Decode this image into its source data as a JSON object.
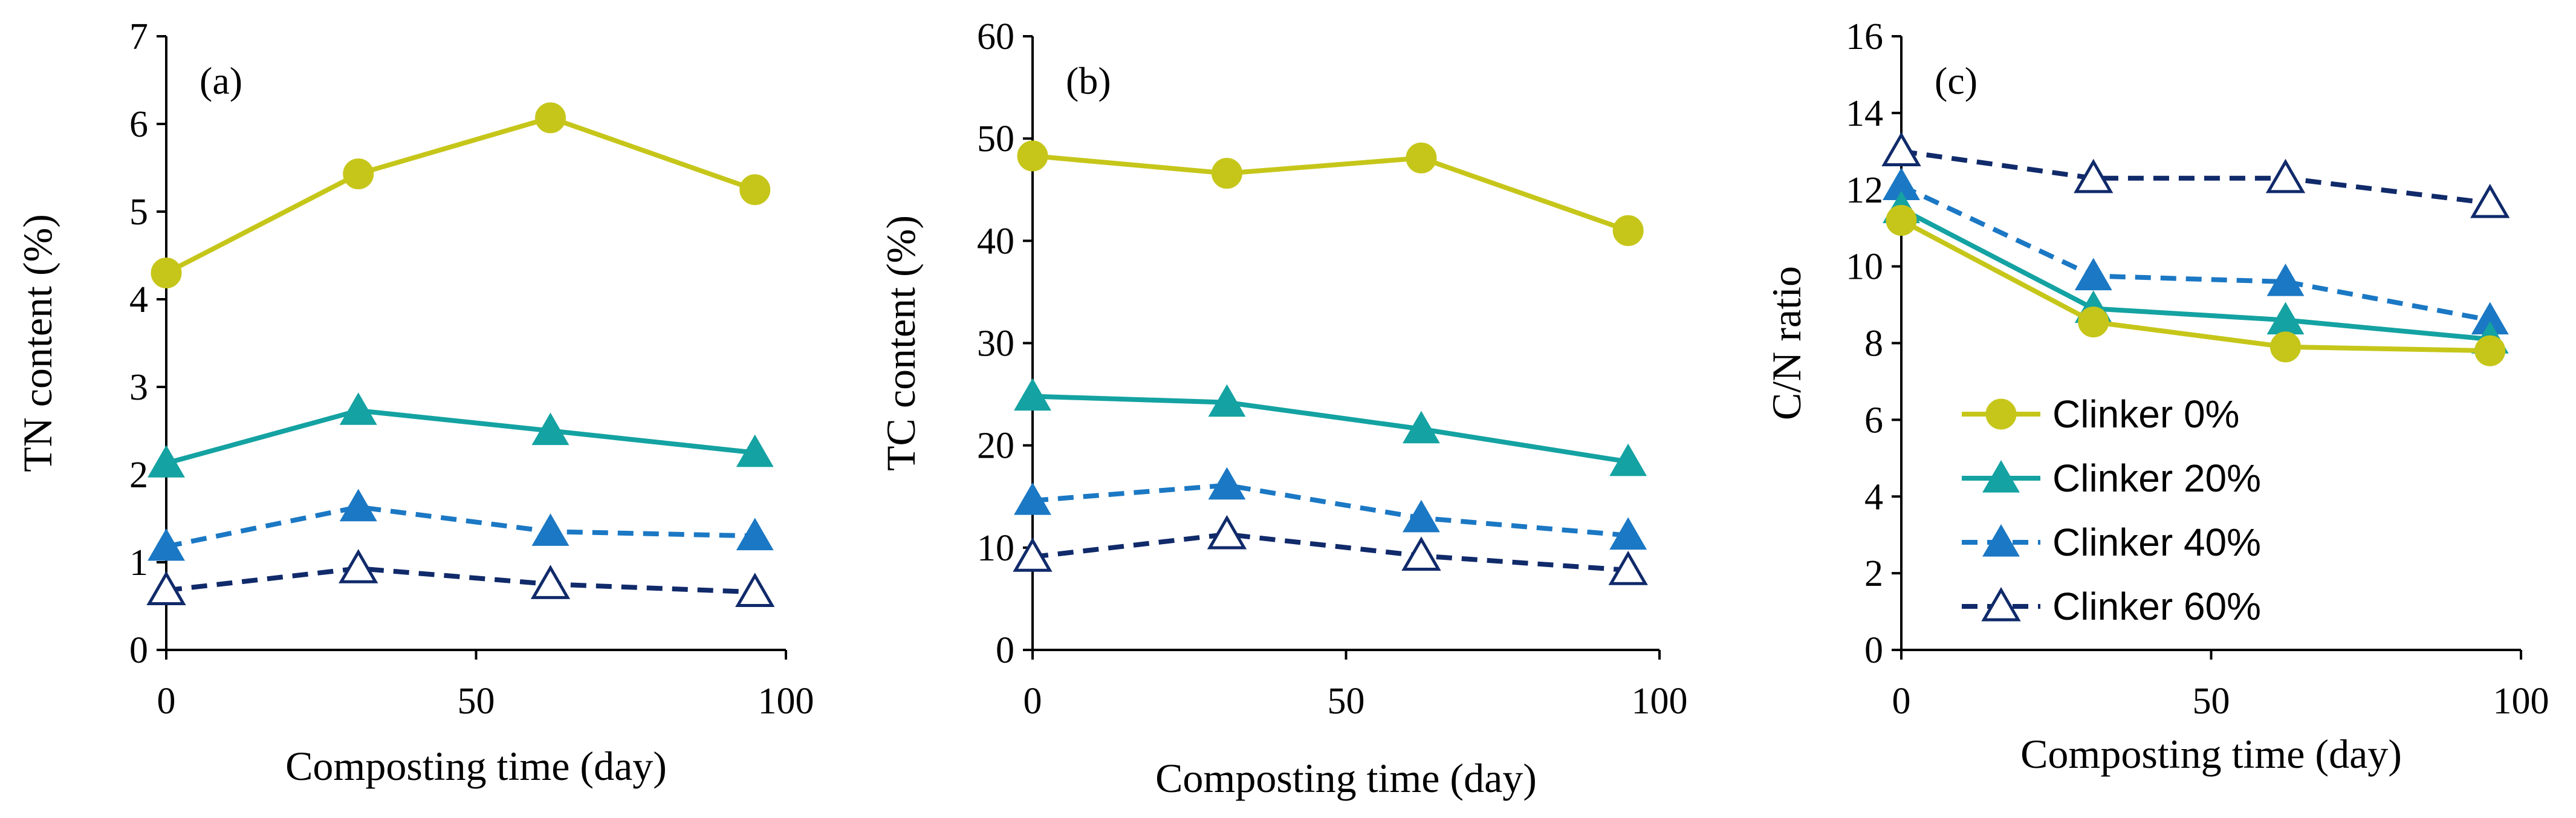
{
  "chart_data": [
    {
      "type": "line",
      "panel_label": "(a)",
      "xlabel": "Composting time (day)",
      "ylabel": "TN content (%)",
      "xlim": [
        0,
        100
      ],
      "ylim": [
        0,
        7
      ],
      "xticks": [
        0,
        50,
        100
      ],
      "yticks": [
        0,
        1,
        2,
        3,
        4,
        5,
        6,
        7
      ],
      "x": [
        0,
        31,
        62,
        95
      ],
      "series": [
        {
          "name": "Clinker 0%",
          "values": [
            4.3,
            5.43,
            6.07,
            5.25
          ]
        },
        {
          "name": "Clinker 20%",
          "values": [
            2.13,
            2.73,
            2.5,
            2.25
          ]
        },
        {
          "name": "Clinker 40%",
          "values": [
            1.18,
            1.63,
            1.35,
            1.3
          ]
        },
        {
          "name": "Clinker 60%",
          "values": [
            0.68,
            0.93,
            0.75,
            0.66
          ]
        }
      ]
    },
    {
      "type": "line",
      "panel_label": "(b)",
      "xlabel": "Composting time (day)",
      "ylabel": "TC content (%)",
      "xlim": [
        0,
        100
      ],
      "ylim": [
        0,
        60
      ],
      "xticks": [
        0,
        50,
        100
      ],
      "yticks": [
        0,
        10,
        20,
        30,
        40,
        50,
        60
      ],
      "x": [
        0,
        31,
        62,
        95
      ],
      "series": [
        {
          "name": "Clinker 0%",
          "values": [
            48.3,
            46.6,
            48.1,
            41.0
          ]
        },
        {
          "name": "Clinker 20%",
          "values": [
            24.8,
            24.2,
            21.6,
            18.4
          ]
        },
        {
          "name": "Clinker 40%",
          "values": [
            14.6,
            16.1,
            12.9,
            11.2
          ]
        },
        {
          "name": "Clinker 60%",
          "values": [
            9.1,
            11.3,
            9.2,
            7.8
          ]
        }
      ]
    },
    {
      "type": "line",
      "panel_label": "(c)",
      "xlabel": "Composting time (day)",
      "ylabel": "C/N ratio",
      "xlim": [
        0,
        100
      ],
      "ylim": [
        0,
        16
      ],
      "xticks": [
        0,
        50,
        100
      ],
      "yticks": [
        0,
        2,
        4,
        6,
        8,
        10,
        12,
        14,
        16
      ],
      "x": [
        0,
        31,
        62,
        95
      ],
      "legend_position": "left-center",
      "series": [
        {
          "name": "Clinker 0%",
          "values": [
            11.2,
            8.55,
            7.9,
            7.8
          ]
        },
        {
          "name": "Clinker 20%",
          "values": [
            11.5,
            8.9,
            8.6,
            8.1
          ]
        },
        {
          "name": "Clinker 40%",
          "values": [
            12.1,
            9.75,
            9.6,
            8.6
          ]
        },
        {
          "name": "Clinker 60%",
          "values": [
            13.0,
            12.3,
            12.3,
            11.65
          ]
        }
      ]
    }
  ],
  "legend": [
    "Clinker 0%",
    "Clinker 20%",
    "Clinker 40%",
    "Clinker 60%"
  ],
  "series_styles": [
    {
      "color": "#C6C61A",
      "dash": "solid",
      "marker": "circle",
      "filled": true
    },
    {
      "color": "#14A2A2",
      "dash": "solid",
      "marker": "triangle",
      "filled": true
    },
    {
      "color": "#1B78C4",
      "dash": "dashed",
      "marker": "triangle",
      "filled": true
    },
    {
      "color": "#102A6A",
      "dash": "dashed",
      "marker": "triangle",
      "filled": false
    }
  ]
}
